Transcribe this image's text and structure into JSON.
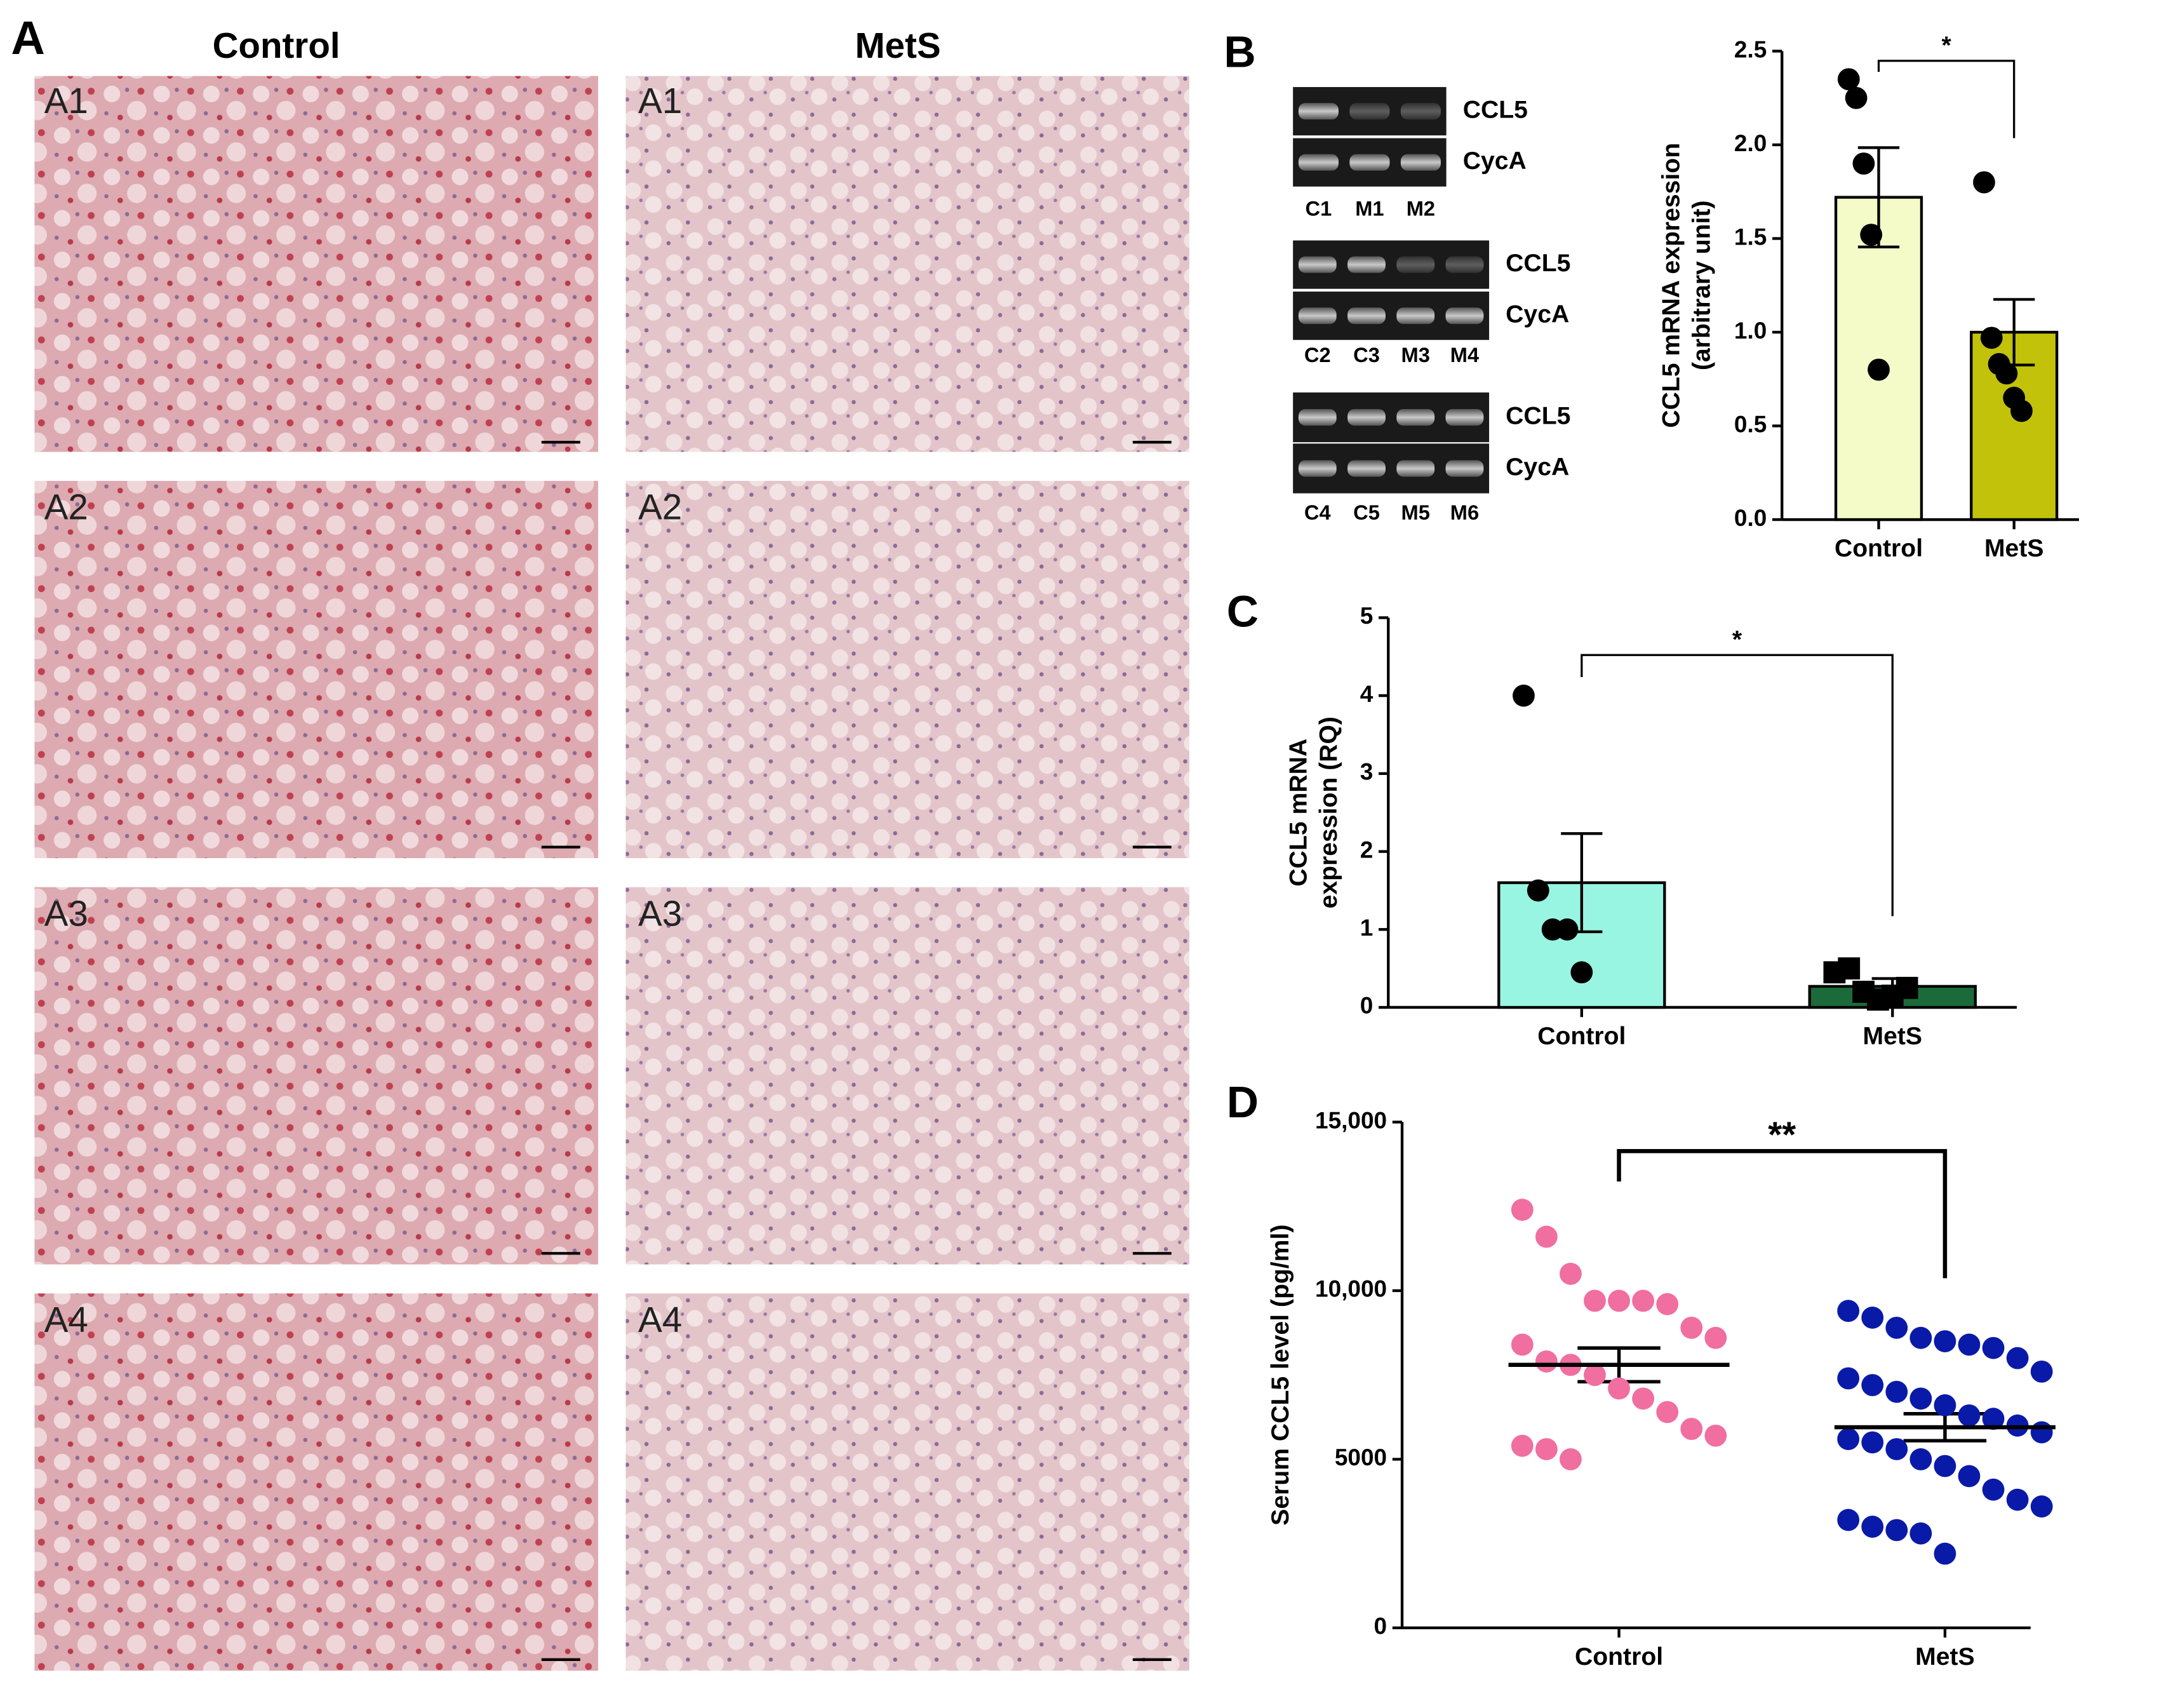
{
  "panel_letters": [
    "A",
    "B",
    "C",
    "D"
  ],
  "histology": {
    "columns": [
      "Control",
      "MetS"
    ],
    "rows": [
      "A1",
      "A2",
      "A3",
      "A4"
    ]
  },
  "gel": {
    "blots": [
      {
        "bands": [
          "CCL5",
          "CycA"
        ],
        "lanes": [
          "C1",
          "M1",
          "M2"
        ]
      },
      {
        "bands": [
          "CCL5",
          "CycA"
        ],
        "lanes": [
          "C2",
          "C3",
          "M3",
          "M4"
        ]
      },
      {
        "bands": [
          "CCL5",
          "CycA"
        ],
        "lanes": [
          "C4",
          "C5",
          "M5",
          "M6"
        ]
      }
    ]
  },
  "chart_data": [
    {
      "type": "bar",
      "y_label": [
        "CCL5 mRNA expression",
        "(arbitrary unit)"
      ],
      "categories": [
        "Control",
        "MetS"
      ],
      "colors": [
        "#f4fbc8",
        "#c2c20a"
      ],
      "markers": [
        "circle",
        "circle"
      ],
      "values": [
        1.72,
        1.0
      ],
      "errors": [
        0.265,
        0.175
      ],
      "points": [
        [
          2.35,
          2.25,
          1.9,
          1.52,
          0.8
        ],
        [
          1.8,
          0.97,
          0.83,
          0.78,
          0.65,
          0.58
        ]
      ],
      "ylim": [
        0,
        2.5
      ],
      "yticks": [
        {
          "value": 0,
          "label": "0.0"
        },
        {
          "value": 0.5,
          "label": "0.5"
        },
        {
          "value": 1,
          "label": "1.0"
        },
        {
          "value": 1.5,
          "label": "1.5"
        },
        {
          "value": 2,
          "label": "2.0"
        },
        {
          "value": 2.5,
          "label": "2.5"
        }
      ],
      "significance": "*"
    },
    {
      "type": "bar",
      "y_label": [
        "CCL5 mRNA",
        "expression (RQ)"
      ],
      "categories": [
        "Control",
        "MetS"
      ],
      "colors": [
        "#98f5e1",
        "#1b6b3a"
      ],
      "markers": [
        "circle",
        "square"
      ],
      "values": [
        1.6,
        0.27
      ],
      "errors": [
        0.63,
        0.1
      ],
      "points": [
        [
          4.0,
          1.5,
          1.0,
          1.0,
          0.45
        ],
        [
          0.45,
          0.5,
          0.2,
          0.1,
          0.15,
          0.25
        ]
      ],
      "ylim": [
        0,
        5
      ],
      "yticks": [
        0,
        1,
        2,
        3,
        4,
        5
      ],
      "significance": "*"
    },
    {
      "type": "dot",
      "y_label": [
        "Serum CCL5 level (pg/ml)"
      ],
      "categories": [
        "Control",
        "MetS"
      ],
      "colors": [
        "#f06ea0",
        "#0a1aa8"
      ],
      "markers": [
        "circle",
        "circle"
      ],
      "values": [
        7800,
        5950
      ],
      "errors": [
        500,
        400
      ],
      "points": [
        [
          12400,
          11600,
          10500,
          9700,
          9700,
          9700,
          9600,
          8900,
          8600,
          8400,
          7900,
          7800,
          7500,
          7100,
          6800,
          6400,
          5900,
          5700,
          5400,
          5300,
          5000
        ],
        [
          9400,
          9200,
          8900,
          8600,
          8500,
          8400,
          8300,
          8000,
          7600,
          7400,
          7200,
          7000,
          6800,
          6600,
          6300,
          6200,
          6000,
          5800,
          5600,
          5500,
          5300,
          5000,
          4800,
          4500,
          4100,
          3800,
          3600,
          3200,
          3000,
          2900,
          2800,
          2200
        ]
      ],
      "ylim": [
        0,
        15000
      ],
      "yticks": [
        0,
        5000,
        {
          "value": 10000,
          "label": "10,000"
        },
        {
          "value": 15000,
          "label": "15,000"
        }
      ],
      "significance": "**"
    }
  ]
}
